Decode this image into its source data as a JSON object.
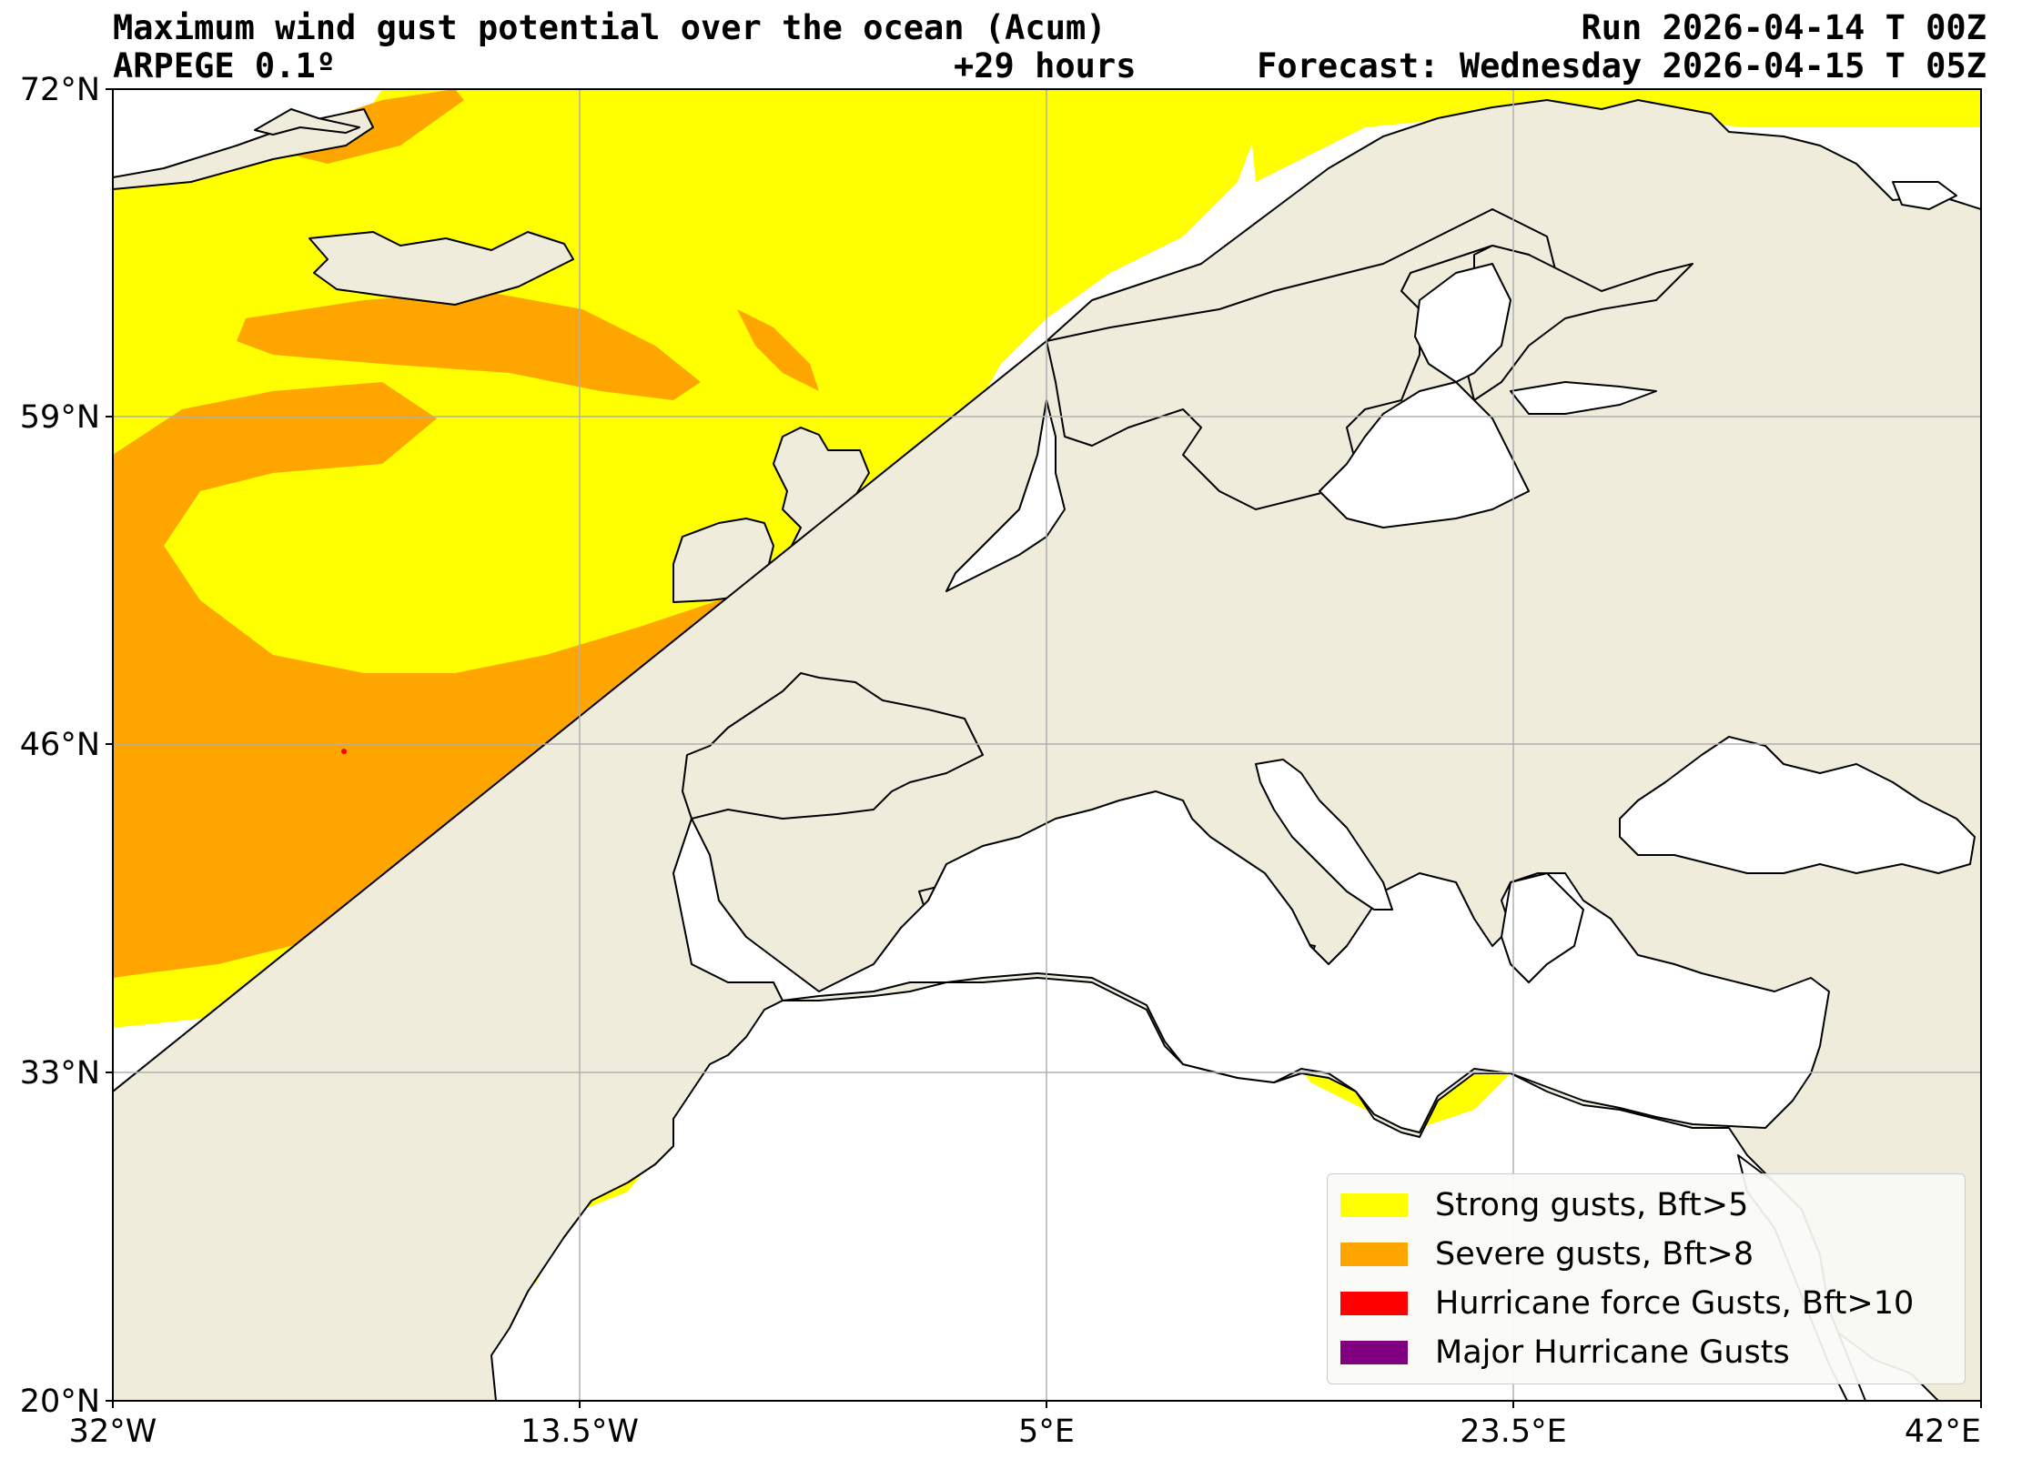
{
  "header": {
    "title": "Maximum wind gust potential over the ocean (Acum)",
    "run": "Run 2026-04-14 T 00Z",
    "model": "ARPEGE 0.1º",
    "lead_time": "+29 hours",
    "forecast": "Forecast: Wednesday 2026-04-15 T 05Z"
  },
  "axes": {
    "lat_labels": [
      "72°N",
      "59°N",
      "46°N",
      "33°N",
      "20°N"
    ],
    "lon_labels": [
      "32°W",
      "13.5°W",
      "5°E",
      "23.5°E",
      "42°E"
    ]
  },
  "colors": {
    "land": "#efecdc",
    "sea": "#ffffff",
    "strong": "#ffff00",
    "severe": "#ffa500",
    "hurricane": "#ff0000",
    "major": "#800080",
    "grid": "#b0b0b0",
    "coast": "#000000"
  },
  "legend": [
    {
      "label": "Strong gusts, Bft>5",
      "color": "#ffff00"
    },
    {
      "label": "Severe gusts, Bft>8",
      "color": "#ffa500"
    },
    {
      "label": "Hurricane force Gusts, Bft>10",
      "color": "#ff0000"
    },
    {
      "label": "Major Hurricane Gusts",
      "color": "#800080"
    }
  ]
}
